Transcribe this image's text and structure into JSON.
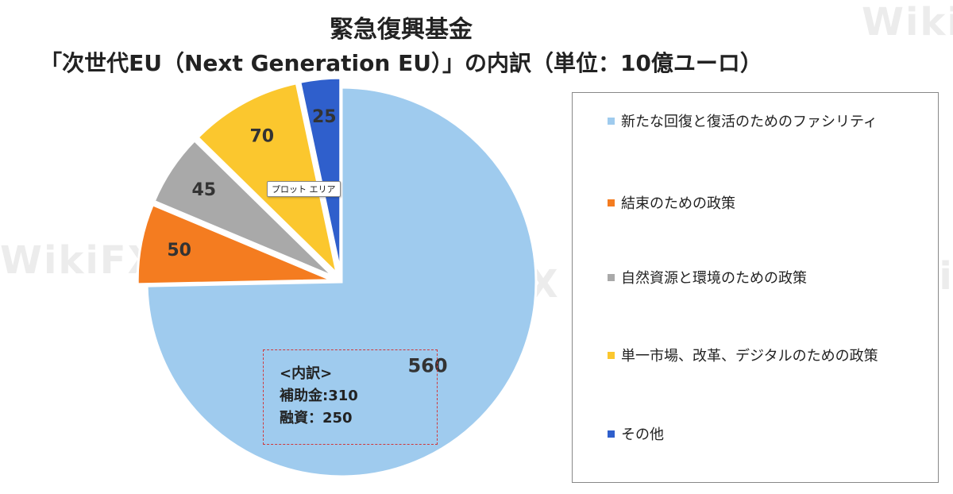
{
  "title_line1": "緊急復興基金",
  "title_line2": "「次世代EU（Next Generation EU）」の内訳（単位：10億ユーロ）",
  "tooltip": "プロット エリア",
  "breakdown": {
    "heading": "<内訳>",
    "line1": "補助金:310",
    "line2": "融資：250"
  },
  "watermark_text": "WikiFX",
  "chart_data": {
    "type": "pie",
    "title": "緊急復興基金「次世代EU（Next Generation EU）」の内訳（単位：10億ユーロ）",
    "categories": [
      "新たな回復と復活のためのファシリティ",
      "結束のための政策",
      "自然資源と環境のための政策",
      "単一市場、改革、デジタルのための政策",
      "その他"
    ],
    "values": [
      560,
      50,
      45,
      70,
      25
    ],
    "colors": [
      "#9fcbee",
      "#f47c20",
      "#a9a9a9",
      "#fbc72e",
      "#2f5fcc"
    ],
    "legend": "right"
  }
}
